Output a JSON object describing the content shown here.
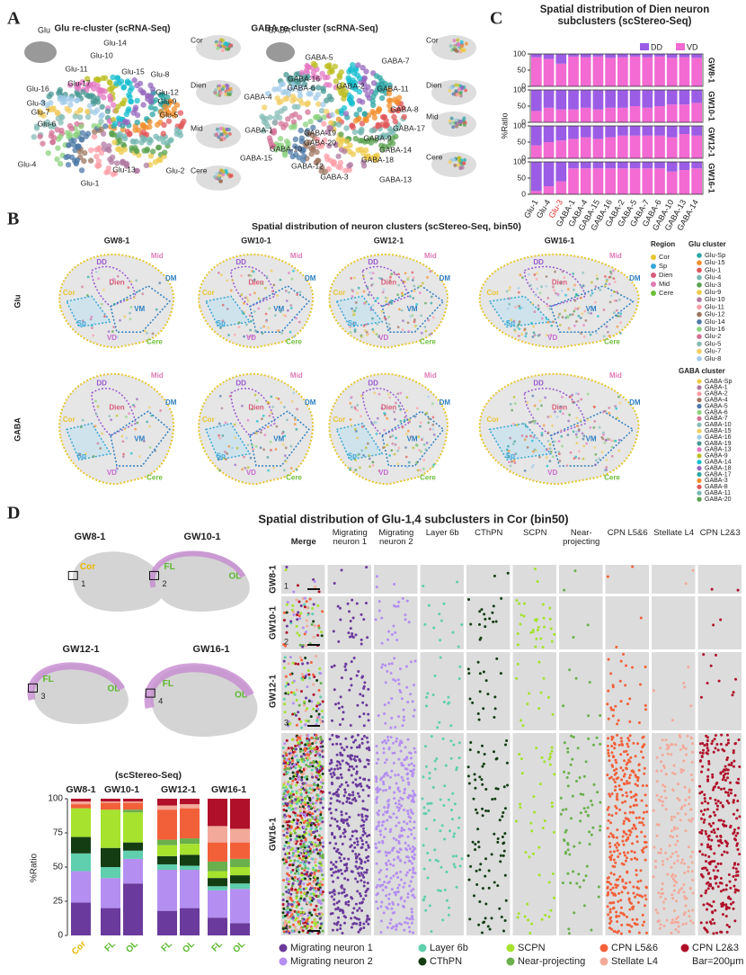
{
  "panel_labels": [
    "A",
    "B",
    "C",
    "D"
  ],
  "panel_a": {
    "glu_title": "Glu re-cluster (scRNA-Seq)",
    "glu_inset": "Glu",
    "gaba_title": "GABA re-cluster (scRNA-Seq)",
    "gaba_inset": "GABA",
    "glu_clusters": [
      "Glu-14",
      "Glu-10",
      "Glu-11",
      "Glu-15",
      "Glu-8",
      "Glu-17",
      "Glu-16",
      "Glu-12",
      "Glu-9",
      "Glu-3",
      "Glu-7",
      "Glu-6",
      "Glu-5",
      "Glu-4",
      "Glu-13",
      "Glu-2",
      "Glu-1"
    ],
    "gaba_clusters": [
      "GABA-5",
      "GABA-7",
      "GABA-16",
      "GABA-6",
      "GABA-2",
      "GABA-11",
      "GABA-4",
      "GABA-8",
      "GABA-1",
      "GABA-17",
      "GABA-9",
      "GABA-19",
      "GABA-20",
      "GABA-14",
      "GABA-10",
      "GABA-15",
      "GABA-18",
      "GABA-12",
      "GABA-3",
      "GABA-13"
    ],
    "regions": [
      "Cor",
      "Dien",
      "Mid",
      "Cere"
    ]
  },
  "panel_b": {
    "title": "Spatial distribution of neuron clusters (scStereo-Seq, bin50)",
    "columns": [
      "GW8-1",
      "GW10-1",
      "GW12-1",
      "GW16-1"
    ],
    "rows": [
      "Glu",
      "GABA"
    ],
    "regions": [
      "Cor",
      "DD",
      "Mid",
      "Dien",
      "DM",
      "Sp",
      "VM",
      "VD",
      "Cere"
    ],
    "legend": {
      "region_title": "Region",
      "regions": [
        "Cor",
        "Sp",
        "Dien",
        "Mid",
        "Cere"
      ],
      "glu_title": "Glu cluster",
      "glu": [
        "Glu-Sp",
        "Glu-15",
        "Glu-1",
        "Glu-4",
        "Glu-3",
        "Glu-9",
        "Glu-10",
        "Glu-11",
        "Glu-12",
        "Glu-14",
        "Glu-16",
        "Glu-2",
        "Glu-5",
        "Glu-7",
        "Glu-8"
      ],
      "gaba_title": "GABA cluster",
      "gaba": [
        "GABA-Sp",
        "GABA-1",
        "GABA-2",
        "GABA-4",
        "GABA-5",
        "GABA-6",
        "GABA-7",
        "GABA-10",
        "GABA-15",
        "GABA-16",
        "GABA-19",
        "GABA-13",
        "GABA-9",
        "GABA-14",
        "GABA-18",
        "GABA-17",
        "GABA-3",
        "GABA-8",
        "GABA-11",
        "GABA-20"
      ]
    }
  },
  "chart_data": [
    {
      "type": "bar",
      "stacked": true,
      "title": "Spatial distribution of Dien neuron subclusters (scStereo-Seq)",
      "y_label": "%Ratio",
      "categories": [
        "Glu-1",
        "Glu-4",
        "Glu-3",
        "GABA-1",
        "GABA-4",
        "GABA-15",
        "GABA-16",
        "GABA-2",
        "GABA-5",
        "GABA-7",
        "GABA-6",
        "GABA-10",
        "GABA-13",
        "GABA-14"
      ],
      "category_colors": [
        "#222222",
        "#222222",
        "#e03030",
        "#222222",
        "#222222",
        "#222222",
        "#222222",
        "#222222",
        "#222222",
        "#222222",
        "#222222",
        "#222222",
        "#222222",
        "#222222"
      ],
      "series": [
        {
          "name": "DD",
          "color": "#9b5de5"
        },
        {
          "name": "VD",
          "color": "#f26ad2"
        }
      ],
      "ylim": [
        0,
        100
      ],
      "yticks": [
        0,
        50,
        100
      ],
      "facets": [
        {
          "label": "GW8-1",
          "series": [
            {
              "values": [
                10,
                15,
                30,
                8,
                10,
                8,
                12,
                10,
                8,
                10,
                8,
                12,
                10,
                12
              ]
            },
            {
              "values": [
                90,
                85,
                70,
                92,
                90,
                92,
                88,
                90,
                92,
                90,
                92,
                88,
                90,
                88
              ]
            }
          ]
        },
        {
          "label": "GW10-1",
          "series": [
            {
              "values": [
                65,
                55,
                60,
                60,
                55,
                60,
                55,
                55,
                50,
                55,
                50,
                45,
                45,
                40
              ]
            },
            {
              "values": [
                35,
                45,
                40,
                40,
                45,
                40,
                45,
                45,
                50,
                45,
                50,
                55,
                55,
                60
              ]
            }
          ]
        },
        {
          "label": "GW12-1",
          "series": [
            {
              "values": [
                60,
                50,
                45,
                40,
                35,
                40,
                35,
                30,
                30,
                30,
                30,
                35,
                25,
                30
              ]
            },
            {
              "values": [
                40,
                50,
                55,
                60,
                65,
                60,
                65,
                70,
                70,
                70,
                70,
                65,
                75,
                70
              ]
            }
          ]
        },
        {
          "label": "GW16-1",
          "series": [
            {
              "values": [
                90,
                75,
                60,
                20,
                20,
                20,
                20,
                20,
                20,
                20,
                20,
                30,
                25,
                20
              ]
            },
            {
              "values": [
                10,
                25,
                40,
                80,
                80,
                80,
                80,
                80,
                80,
                80,
                80,
                70,
                75,
                80
              ]
            }
          ]
        }
      ]
    },
    {
      "type": "bar",
      "stacked": true,
      "title": "(scStereo-Seq)",
      "y_label": "%Ratio",
      "groups": [
        "GW8-1",
        "GW10-1",
        "GW12-1",
        "GW16-1"
      ],
      "categories": [
        "Cor",
        "FL",
        "OL",
        "FL",
        "OL",
        "FL",
        "OL"
      ],
      "category_colors": [
        "#e8b800",
        "#5cb82e",
        "#5cb82e",
        "#5cb82e",
        "#5cb82e",
        "#5cb82e",
        "#5cb82e"
      ],
      "ylim": [
        0,
        100
      ],
      "yticks": [
        0,
        25,
        50,
        75,
        100
      ],
      "series": [
        {
          "name": "Migrating neuron 1",
          "color": "#6a3a9c",
          "values": [
            24,
            20,
            38,
            18,
            20,
            13,
            9
          ]
        },
        {
          "name": "Migrating neuron 2",
          "color": "#b48ef0",
          "values": [
            23,
            22,
            18,
            30,
            28,
            20,
            25
          ]
        },
        {
          "name": "Layer 6b",
          "color": "#5fcfae",
          "values": [
            13,
            8,
            6,
            4,
            3,
            3,
            4
          ]
        },
        {
          "name": "CThPN",
          "color": "#143d14",
          "values": [
            12,
            14,
            6,
            6,
            8,
            6,
            6
          ]
        },
        {
          "name": "SCPN",
          "color": "#a6e22e",
          "values": [
            21,
            28,
            22,
            8,
            8,
            5,
            6
          ]
        },
        {
          "name": "Near-projecting",
          "color": "#6ab04c",
          "values": [
            0,
            0,
            2,
            4,
            4,
            7,
            6
          ]
        },
        {
          "name": "CPN L5&6",
          "color": "#f2603a",
          "values": [
            3,
            5,
            5,
            22,
            22,
            14,
            12
          ]
        },
        {
          "name": "Stellate L4",
          "color": "#f3a99a",
          "values": [
            2,
            1,
            1,
            3,
            3,
            12,
            10
          ]
        },
        {
          "name": "CPN L2&3",
          "color": "#b0102a",
          "values": [
            2,
            2,
            2,
            5,
            4,
            20,
            22
          ]
        }
      ]
    }
  ],
  "panel_d": {
    "title": "Spatial distribution of Glu-1,4 subclusters in Cor (bin50)",
    "merge": "Merge",
    "scale_note": "Bar=200μm",
    "maps": [
      {
        "label": "GW8-1",
        "areas": [
          "Cor"
        ],
        "box": "1"
      },
      {
        "label": "GW10-1",
        "areas": [
          "FL",
          "OL"
        ],
        "box": "2"
      },
      {
        "label": "GW12-1",
        "areas": [
          "FL",
          "OL"
        ],
        "box": "3"
      },
      {
        "label": "GW16-1",
        "areas": [
          "FL",
          "OL"
        ],
        "box": "4"
      }
    ]
  }
}
